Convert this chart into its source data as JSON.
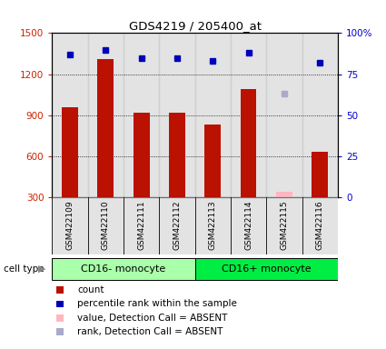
{
  "title": "GDS4219 / 205400_at",
  "samples": [
    "GSM422109",
    "GSM422110",
    "GSM422111",
    "GSM422112",
    "GSM422113",
    "GSM422114",
    "GSM422115",
    "GSM422116"
  ],
  "counts": [
    960,
    1310,
    920,
    915,
    830,
    1090,
    null,
    630
  ],
  "absent_counts": [
    null,
    null,
    null,
    null,
    null,
    null,
    340,
    null
  ],
  "percentile_ranks": [
    87,
    90,
    85,
    85,
    83,
    88,
    null,
    82
  ],
  "absent_ranks": [
    null,
    null,
    null,
    null,
    null,
    null,
    63,
    null
  ],
  "groups": [
    {
      "label": "CD16- monocyte",
      "start": 0,
      "end": 4,
      "color": "#AAFFAA"
    },
    {
      "label": "CD16+ monocyte",
      "start": 4,
      "end": 8,
      "color": "#00EE44"
    }
  ],
  "ylim_left": [
    300,
    1500
  ],
  "ylim_right": [
    0,
    100
  ],
  "yticks_left": [
    300,
    600,
    900,
    1200,
    1500
  ],
  "yticks_right": [
    0,
    25,
    50,
    75,
    100
  ],
  "yticklabels_right": [
    "0",
    "25",
    "50",
    "75",
    "100%"
  ],
  "bar_color": "#BB1100",
  "absent_bar_color": "#FFB6C1",
  "dot_color": "#0000BB",
  "absent_dot_color": "#AAAACC",
  "bar_width": 0.45,
  "cell_type_label": "cell type",
  "legend_items": [
    {
      "color": "#BB1100",
      "label": "count"
    },
    {
      "color": "#0000BB",
      "label": "percentile rank within the sample"
    },
    {
      "color": "#FFB6C1",
      "label": "value, Detection Call = ABSENT"
    },
    {
      "color": "#AAAACC",
      "label": "rank, Detection Call = ABSENT"
    }
  ],
  "tick_label_color_left": "#CC2200",
  "tick_label_color_right": "#0000CC",
  "gray_col": "#CCCCCC"
}
